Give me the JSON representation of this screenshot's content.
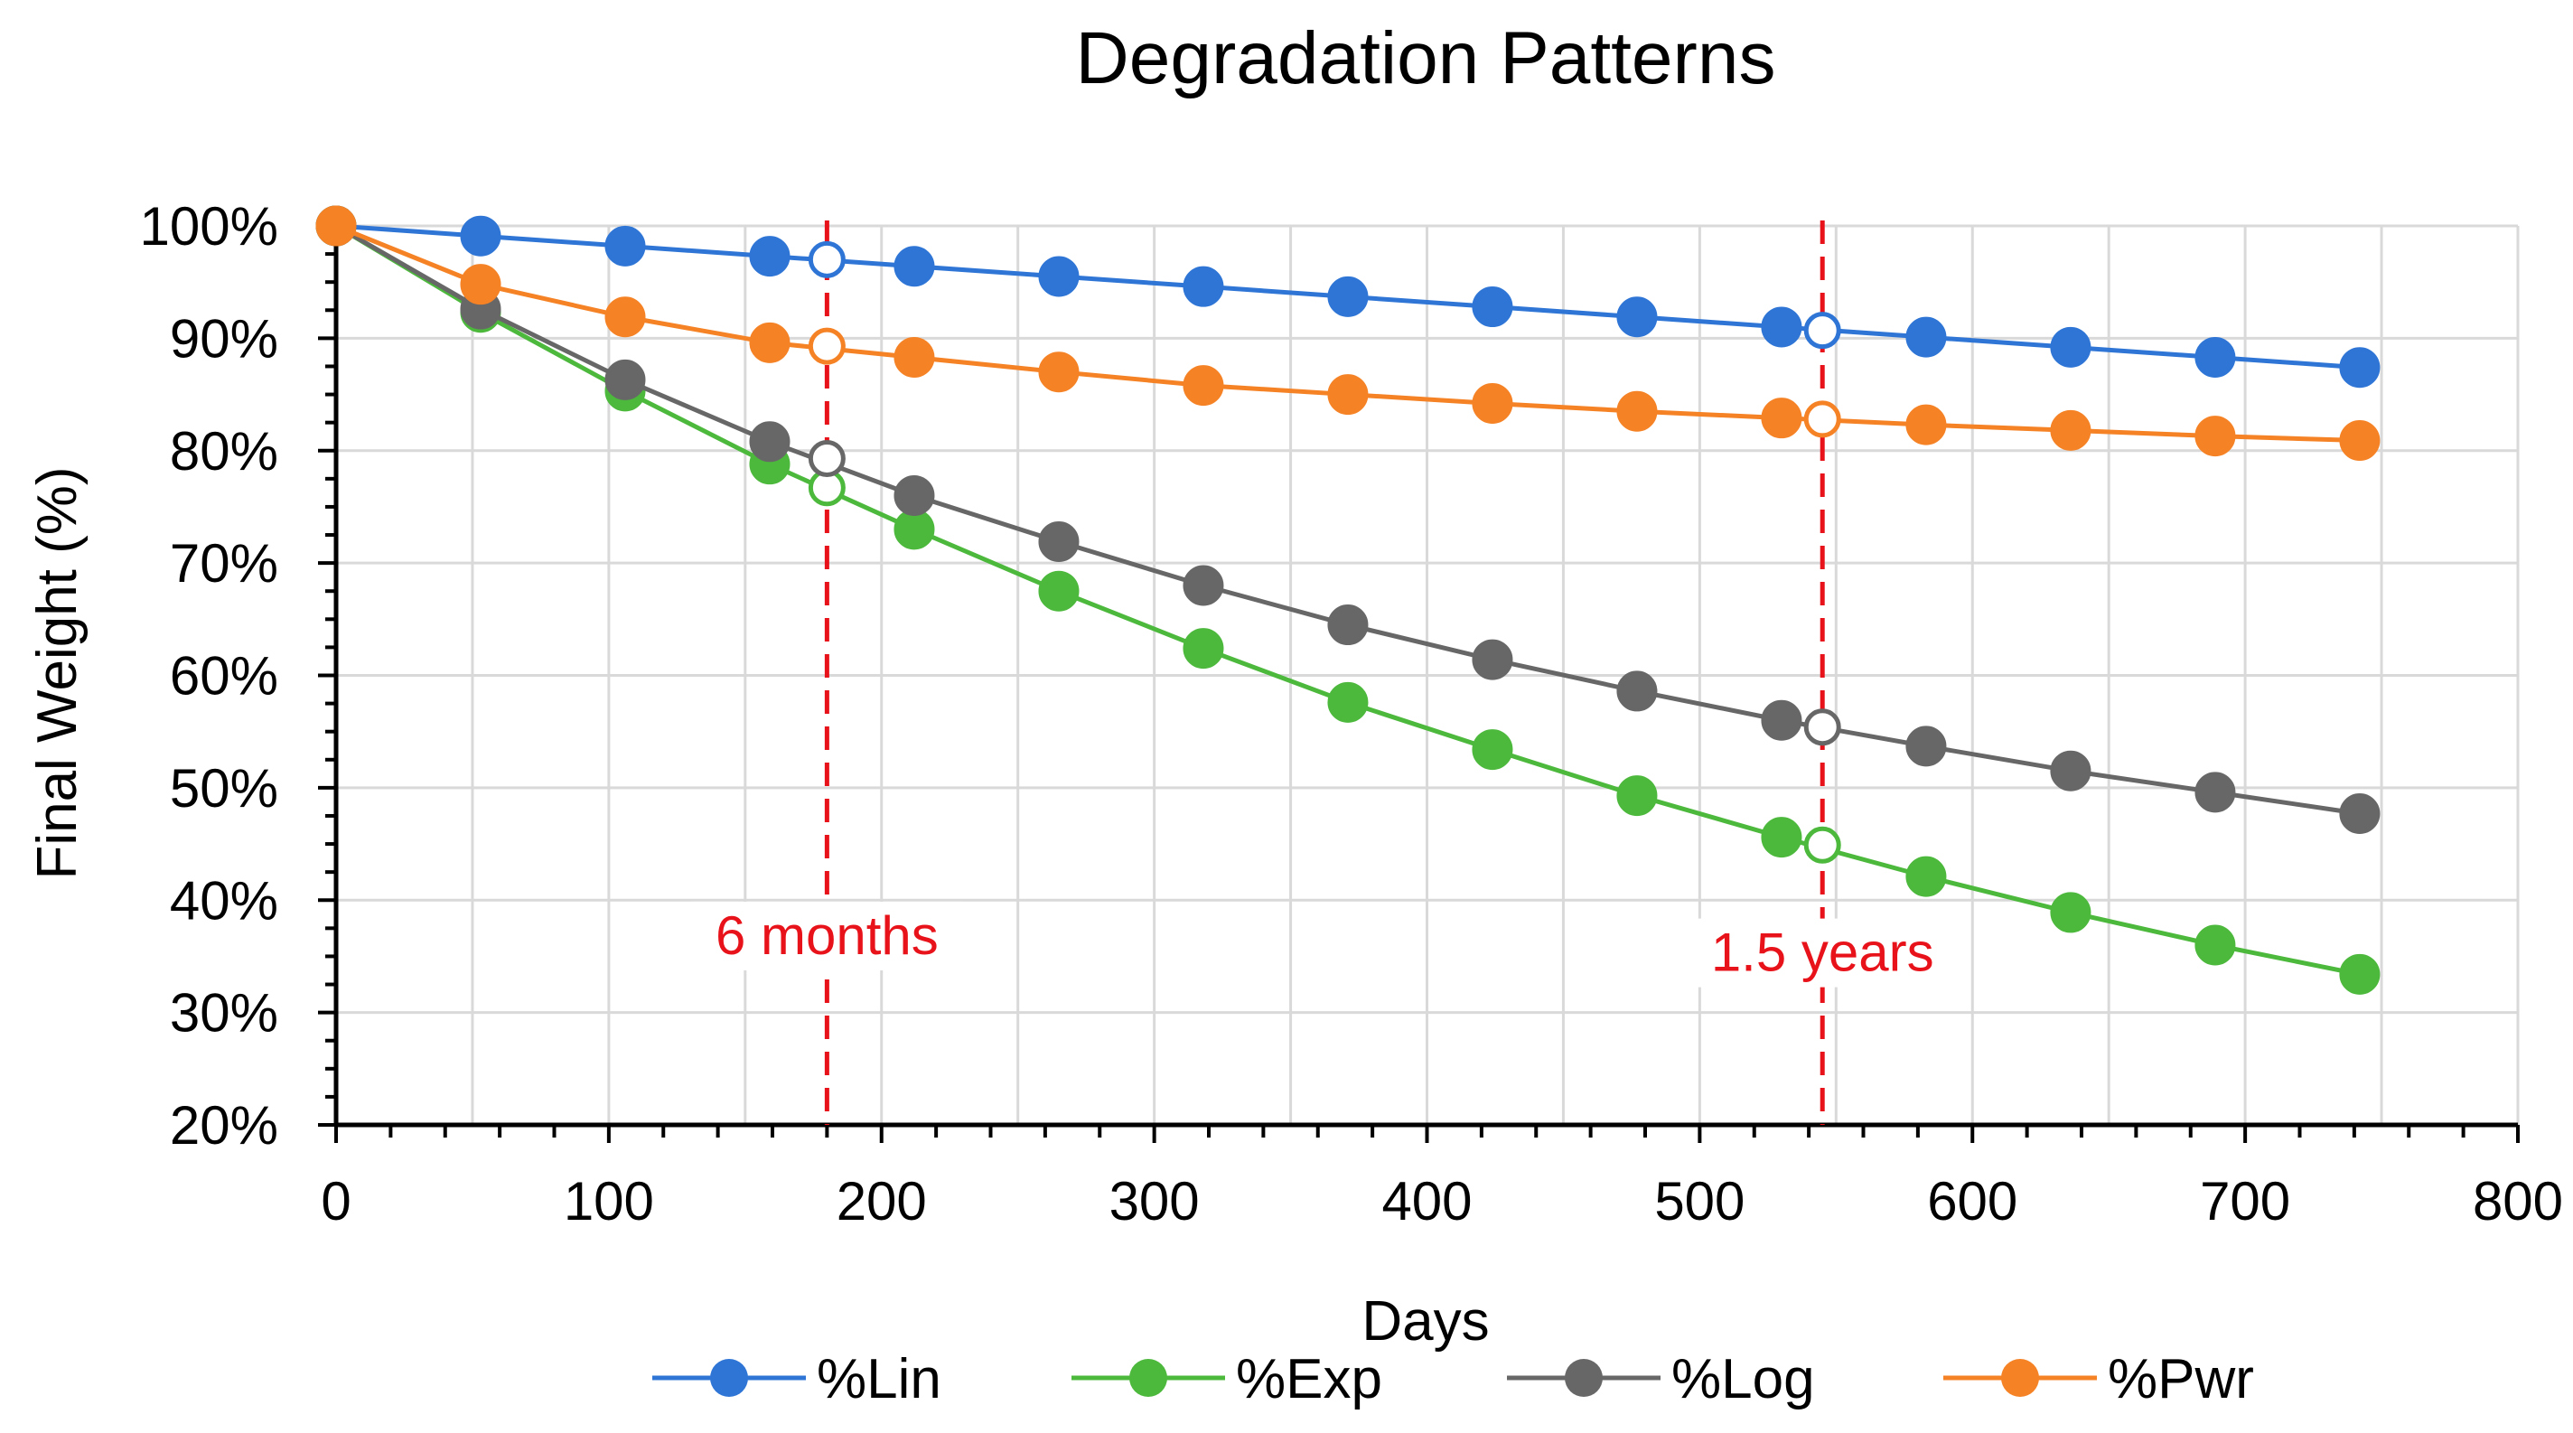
{
  "chart_data": {
    "type": "line",
    "title": "Degradation Patterns",
    "xlabel": "Days",
    "ylabel": "Final Weight (%)",
    "xlim": [
      0,
      800
    ],
    "ylim": [
      20,
      100
    ],
    "x_ticks": [
      0,
      100,
      200,
      300,
      400,
      500,
      600,
      700,
      800
    ],
    "x_tick_labels": [
      "0",
      "100",
      "200",
      "300",
      "400",
      "500",
      "600",
      "700",
      "800"
    ],
    "y_ticks": [
      20,
      30,
      40,
      50,
      60,
      70,
      80,
      90,
      100
    ],
    "y_tick_labels": [
      "20%",
      "30%",
      "40%",
      "50%",
      "60%",
      "70%",
      "80%",
      "90%",
      "100%"
    ],
    "grid": true,
    "legend_position": "bottom",
    "x": [
      0,
      53,
      106,
      159,
      212,
      265,
      318,
      371,
      424,
      477,
      530,
      583,
      636,
      689,
      742
    ],
    "series": [
      {
        "name": "%Lin",
        "color": "#2E75D6",
        "values": [
          100,
          99.1,
          98.2,
          97.3,
          96.4,
          95.5,
          94.6,
          93.7,
          92.8,
          91.9,
          91.0,
          90.1,
          89.2,
          88.3,
          87.4
        ]
      },
      {
        "name": "%Exp",
        "color": "#4CB83C",
        "values": [
          100,
          92.3,
          85.3,
          78.8,
          73.0,
          67.5,
          62.4,
          57.6,
          53.4,
          49.3,
          45.6,
          42.1,
          38.9,
          36.0,
          33.4
        ]
      },
      {
        "name": "%Log",
        "color": "#676767",
        "values": [
          100,
          92.6,
          86.3,
          80.8,
          76.0,
          71.9,
          68.0,
          64.5,
          61.4,
          58.6,
          56.0,
          53.7,
          51.5,
          49.6,
          47.7
        ]
      },
      {
        "name": "%Pwr",
        "color": "#F58225",
        "values": [
          100,
          94.8,
          91.9,
          89.6,
          88.3,
          87.0,
          85.8,
          85.0,
          84.2,
          83.5,
          82.9,
          82.3,
          81.8,
          81.3,
          80.9
        ]
      }
    ],
    "markers": [
      {
        "series": "%Lin",
        "x": 180,
        "y": 97.0
      },
      {
        "series": "%Lin",
        "x": 545,
        "y": 90.7
      },
      {
        "series": "%Exp",
        "x": 180,
        "y": 76.7
      },
      {
        "series": "%Exp",
        "x": 545,
        "y": 44.9
      },
      {
        "series": "%Log",
        "x": 180,
        "y": 79.3
      },
      {
        "series": "%Log",
        "x": 545,
        "y": 55.4
      },
      {
        "series": "%Pwr",
        "x": 180,
        "y": 89.3
      },
      {
        "series": "%Pwr",
        "x": 545,
        "y": 82.8
      }
    ],
    "annotations": [
      {
        "label": "6 months",
        "x": 180,
        "label_y": 35.2,
        "color": "#E8131A"
      },
      {
        "label": "1.5 years",
        "x": 545,
        "label_y": 33.7,
        "color": "#E8131A"
      }
    ]
  }
}
